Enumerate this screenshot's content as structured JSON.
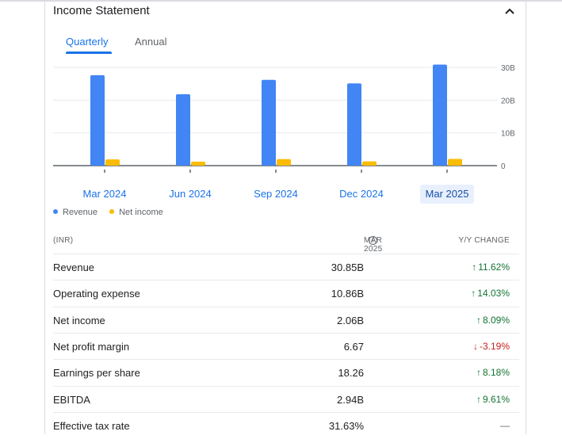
{
  "card": {
    "title": "Income Statement",
    "collapse_icon": "chevron-up-icon"
  },
  "tabs": [
    {
      "label": "Quarterly",
      "active": true
    },
    {
      "label": "Annual",
      "active": false
    }
  ],
  "colors": {
    "revenue": "#4285f4",
    "net_income": "#fbbc04",
    "accent": "#1a73e8",
    "positive": "#137333",
    "negative": "#c5221f"
  },
  "chart_data": {
    "type": "bar",
    "categories": [
      "Mar 2024",
      "Jun 2024",
      "Sep 2024",
      "Dec 2024",
      "Mar 2025"
    ],
    "series": [
      {
        "name": "Revenue",
        "values": [
          27.6,
          21.8,
          26.2,
          25.1,
          30.85
        ]
      },
      {
        "name": "Net income",
        "values": [
          1.9,
          1.2,
          2.0,
          1.3,
          2.06
        ]
      }
    ],
    "yticks": [
      "0",
      "10B",
      "20B",
      "30B"
    ],
    "ylim": [
      0,
      33
    ],
    "selected_category": "Mar 2025",
    "grid": true,
    "legend_position": "bottom-left"
  },
  "table": {
    "headers": {
      "label": "(INR)",
      "period": "MAR 2025",
      "change": "Y/Y CHANGE"
    },
    "rows": [
      {
        "metric": "Revenue",
        "value": "30.85B",
        "change": "11.62%",
        "direction": "up"
      },
      {
        "metric": "Operating expense",
        "value": "10.86B",
        "change": "14.03%",
        "direction": "up"
      },
      {
        "metric": "Net income",
        "value": "2.06B",
        "change": "8.09%",
        "direction": "up"
      },
      {
        "metric": "Net profit margin",
        "value": "6.67",
        "change": "-3.19%",
        "direction": "down"
      },
      {
        "metric": "Earnings per share",
        "value": "18.26",
        "change": "8.18%",
        "direction": "up"
      },
      {
        "metric": "EBITDA",
        "value": "2.94B",
        "change": "9.61%",
        "direction": "up"
      },
      {
        "metric": "Effective tax rate",
        "value": "31.63%",
        "change": "—",
        "direction": "flat"
      }
    ]
  }
}
